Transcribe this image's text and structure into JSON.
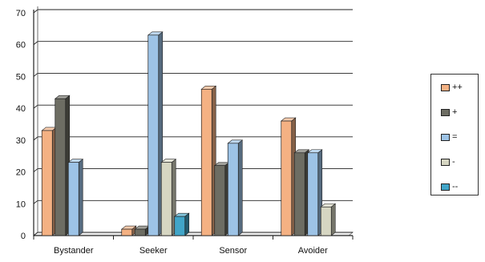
{
  "chart_data": {
    "type": "bar",
    "categories": [
      "Bystander",
      "Seeker",
      "Sensor",
      "Avoider"
    ],
    "series": [
      {
        "name": "++",
        "values": [
          33,
          2,
          46,
          36
        ],
        "color": "#f4b183"
      },
      {
        "name": "+",
        "values": [
          43,
          2,
          22,
          26
        ],
        "color": "#6d6d63"
      },
      {
        "name": "=",
        "values": [
          23,
          63,
          29,
          26
        ],
        "color": "#9dc3e6"
      },
      {
        "name": "-",
        "values": [
          0,
          23,
          0,
          9
        ],
        "color": "#d6d6c2"
      },
      {
        "name": "--",
        "values": [
          0,
          6,
          0,
          0
        ],
        "color": "#41a5c8"
      }
    ],
    "yticks": [
      "0",
      "10",
      "20",
      "30",
      "40",
      "50",
      "60",
      "70"
    ],
    "ylim": [
      0,
      70
    ],
    "grid": true,
    "legend": "right",
    "title": "",
    "xlabel": "",
    "ylabel": ""
  }
}
